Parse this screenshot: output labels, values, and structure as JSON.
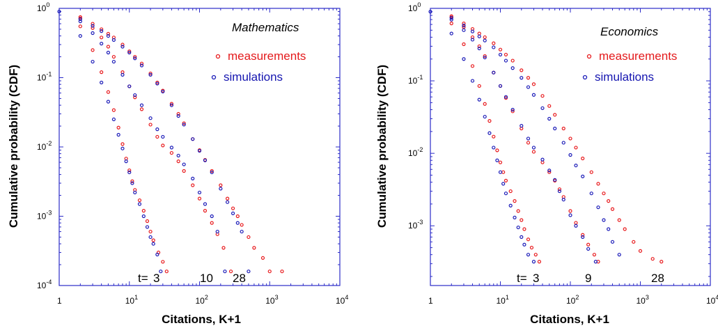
{
  "colors": {
    "measurements": "#e8191c",
    "simulations": "#1a1ab8",
    "frame": "#2b2bc8"
  },
  "chart_data": [
    {
      "type": "scatter",
      "panel_label": "Mathematics",
      "xlabel": "Citations, K+1",
      "ylabel": "Cumulative probability (CDF)",
      "xscale": "log",
      "yscale": "log",
      "xlim": [
        1,
        10000
      ],
      "ylim": [
        0.0001,
        1
      ],
      "x_ticks": [
        {
          "base": "1",
          "exp": ""
        },
        {
          "base": "10",
          "exp": "1"
        },
        {
          "base": "10",
          "exp": "2"
        },
        {
          "base": "10",
          "exp": "3"
        },
        {
          "base": "10",
          "exp": "4"
        }
      ],
      "y_ticks": [
        {
          "base": "10",
          "exp": "0"
        },
        {
          "base": "10",
          "exp": "-1"
        },
        {
          "base": "10",
          "exp": "-2"
        },
        {
          "base": "10",
          "exp": "-3"
        },
        {
          "base": "10",
          "exp": "-4"
        }
      ],
      "legend": {
        "placement": "upper-right",
        "entries": [
          "measurements",
          "simulations"
        ]
      },
      "time_label": "t=",
      "time_values": [
        "3",
        "10",
        "28"
      ],
      "series": [
        {
          "name": "measurements",
          "t": "3",
          "x": [
            2,
            3,
            4,
            5,
            6,
            7,
            8,
            9,
            10,
            11,
            12,
            14,
            16,
            18,
            20,
            22,
            26,
            30,
            34
          ],
          "y": [
            0.55,
            0.25,
            0.12,
            0.062,
            0.034,
            0.019,
            0.011,
            0.0068,
            0.0046,
            0.0032,
            0.0024,
            0.0017,
            0.0012,
            0.00085,
            0.0006,
            0.00045,
            0.0003,
            0.00022,
            0.00016
          ]
        },
        {
          "name": "simulations",
          "t": "3",
          "x": [
            1,
            2,
            3,
            4,
            5,
            6,
            7,
            8,
            9,
            10,
            11,
            12,
            14,
            16,
            18,
            20,
            22,
            25,
            28
          ],
          "y": [
            0.9,
            0.4,
            0.17,
            0.085,
            0.045,
            0.025,
            0.015,
            0.0095,
            0.0062,
            0.0043,
            0.003,
            0.0022,
            0.0015,
            0.001,
            0.0007,
            0.0005,
            0.0004,
            0.00028,
            0.00016
          ]
        },
        {
          "name": "measurements",
          "t": "10",
          "x": [
            2,
            3,
            4,
            5,
            6,
            8,
            10,
            12,
            15,
            20,
            25,
            30,
            40,
            50,
            60,
            80,
            100,
            120,
            150,
            180,
            220,
            280
          ],
          "y": [
            0.72,
            0.52,
            0.38,
            0.28,
            0.2,
            0.12,
            0.075,
            0.052,
            0.035,
            0.021,
            0.014,
            0.0105,
            0.0082,
            0.0062,
            0.0045,
            0.0028,
            0.0018,
            0.0012,
            0.0008,
            0.00055,
            0.00035,
            0.00016
          ]
        },
        {
          "name": "simulations",
          "t": "10",
          "x": [
            2,
            3,
            4,
            5,
            6,
            8,
            10,
            12,
            15,
            20,
            25,
            30,
            40,
            50,
            60,
            80,
            100,
            120,
            150,
            180,
            230
          ],
          "y": [
            0.65,
            0.44,
            0.31,
            0.23,
            0.17,
            0.11,
            0.075,
            0.056,
            0.04,
            0.026,
            0.018,
            0.014,
            0.0098,
            0.0075,
            0.0056,
            0.0035,
            0.0022,
            0.0015,
            0.001,
            0.0006,
            0.00016
          ]
        },
        {
          "name": "measurements",
          "t": "28",
          "x": [
            2,
            3,
            4,
            5,
            6,
            8,
            10,
            12,
            15,
            20,
            25,
            30,
            40,
            50,
            60,
            80,
            100,
            120,
            150,
            200,
            250,
            300,
            350,
            400,
            500,
            600,
            800,
            1000,
            1500
          ],
          "y": [
            0.75,
            0.6,
            0.5,
            0.43,
            0.38,
            0.3,
            0.24,
            0.2,
            0.16,
            0.115,
            0.085,
            0.065,
            0.042,
            0.03,
            0.022,
            0.013,
            0.009,
            0.0065,
            0.0045,
            0.0028,
            0.0018,
            0.0013,
            0.001,
            0.00075,
            0.0005,
            0.00035,
            0.00025,
            0.00016,
            0.00016
          ]
        },
        {
          "name": "simulations",
          "t": "28",
          "x": [
            2,
            3,
            4,
            5,
            6,
            8,
            10,
            12,
            15,
            20,
            25,
            30,
            40,
            50,
            60,
            80,
            100,
            120,
            150,
            200,
            250,
            300,
            350,
            400,
            500
          ],
          "y": [
            0.7,
            0.56,
            0.47,
            0.4,
            0.35,
            0.28,
            0.23,
            0.19,
            0.15,
            0.11,
            0.082,
            0.063,
            0.04,
            0.028,
            0.021,
            0.013,
            0.0088,
            0.0064,
            0.0043,
            0.0025,
            0.0016,
            0.0011,
            0.0008,
            0.0006,
            0.00016
          ]
        }
      ]
    },
    {
      "type": "scatter",
      "panel_label": "Economics",
      "xlabel": "Citations, K+1",
      "ylabel": "Cumulative probability (CDF)",
      "xscale": "log",
      "yscale": "log",
      "xlim": [
        1,
        10000
      ],
      "ylim": [
        0.00015,
        1
      ],
      "x_ticks": [
        {
          "base": "1",
          "exp": ""
        },
        {
          "base": "10",
          "exp": "1"
        },
        {
          "base": "10",
          "exp": "2"
        },
        {
          "base": "10",
          "exp": "3"
        },
        {
          "base": "10",
          "exp": "4"
        }
      ],
      "y_ticks": [
        {
          "base": "10",
          "exp": "0"
        },
        {
          "base": "10",
          "exp": "-1"
        },
        {
          "base": "10",
          "exp": "-2"
        },
        {
          "base": "10",
          "exp": "-3"
        }
      ],
      "legend": {
        "placement": "upper-right",
        "entries": [
          "measurements",
          "simulations"
        ]
      },
      "time_label": "t=",
      "time_values": [
        "3",
        "9",
        "28"
      ],
      "series": [
        {
          "name": "measurements",
          "t": "3",
          "x": [
            2,
            3,
            4,
            5,
            6,
            7,
            8,
            9,
            10,
            11,
            12,
            14,
            16,
            18,
            20,
            22,
            25,
            28,
            32,
            36
          ],
          "y": [
            0.62,
            0.32,
            0.16,
            0.085,
            0.048,
            0.028,
            0.017,
            0.011,
            0.0075,
            0.0055,
            0.0042,
            0.003,
            0.0022,
            0.0016,
            0.0012,
            0.0009,
            0.00065,
            0.0005,
            0.0004,
            0.00032
          ]
        },
        {
          "name": "simulations",
          "t": "3",
          "x": [
            1,
            2,
            3,
            4,
            5,
            6,
            7,
            8,
            9,
            10,
            11,
            12,
            14,
            16,
            18,
            20,
            22,
            25,
            30
          ],
          "y": [
            0.9,
            0.45,
            0.2,
            0.1,
            0.055,
            0.032,
            0.019,
            0.012,
            0.008,
            0.0055,
            0.0038,
            0.0028,
            0.0019,
            0.0013,
            0.00095,
            0.0007,
            0.00055,
            0.0004,
            0.00032
          ]
        },
        {
          "name": "measurements",
          "t": "9",
          "x": [
            2,
            3,
            4,
            5,
            6,
            8,
            10,
            12,
            15,
            20,
            25,
            30,
            40,
            50,
            60,
            70,
            80,
            100,
            120,
            150,
            180,
            220,
            250
          ],
          "y": [
            0.75,
            0.55,
            0.4,
            0.3,
            0.22,
            0.13,
            0.085,
            0.058,
            0.038,
            0.022,
            0.014,
            0.0105,
            0.0075,
            0.0055,
            0.0042,
            0.0032,
            0.0025,
            0.0016,
            0.0011,
            0.00075,
            0.00055,
            0.0004,
            0.00032
          ]
        },
        {
          "name": "simulations",
          "t": "9",
          "x": [
            2,
            3,
            4,
            5,
            6,
            8,
            10,
            12,
            15,
            20,
            25,
            30,
            40,
            50,
            60,
            70,
            80,
            100,
            120,
            150,
            180,
            230
          ],
          "y": [
            0.7,
            0.5,
            0.37,
            0.28,
            0.21,
            0.13,
            0.085,
            0.06,
            0.04,
            0.024,
            0.016,
            0.012,
            0.0082,
            0.0058,
            0.0043,
            0.003,
            0.0023,
            0.0014,
            0.001,
            0.0007,
            0.00048,
            0.00032
          ]
        },
        {
          "name": "measurements",
          "t": "28",
          "x": [
            2,
            3,
            4,
            5,
            6,
            8,
            10,
            12,
            15,
            20,
            25,
            30,
            40,
            50,
            60,
            80,
            100,
            120,
            150,
            200,
            250,
            300,
            350,
            400,
            500,
            600,
            800,
            1000,
            1500,
            2000
          ],
          "y": [
            0.78,
            0.62,
            0.52,
            0.45,
            0.4,
            0.33,
            0.27,
            0.23,
            0.19,
            0.14,
            0.11,
            0.09,
            0.062,
            0.045,
            0.034,
            0.022,
            0.016,
            0.012,
            0.0085,
            0.0055,
            0.0038,
            0.0028,
            0.0022,
            0.0017,
            0.0012,
            0.0009,
            0.0006,
            0.00045,
            0.00035,
            0.00032
          ]
        },
        {
          "name": "simulations",
          "t": "28",
          "x": [
            2,
            3,
            4,
            5,
            6,
            8,
            10,
            12,
            15,
            20,
            25,
            30,
            40,
            50,
            60,
            80,
            100,
            120,
            150,
            200,
            250,
            300,
            350,
            400,
            500
          ],
          "y": [
            0.74,
            0.58,
            0.48,
            0.41,
            0.36,
            0.29,
            0.23,
            0.19,
            0.15,
            0.11,
            0.082,
            0.064,
            0.042,
            0.03,
            0.022,
            0.014,
            0.0095,
            0.0068,
            0.0048,
            0.0028,
            0.0018,
            0.0012,
            0.0009,
            0.0006,
            0.0004
          ]
        }
      ]
    }
  ]
}
